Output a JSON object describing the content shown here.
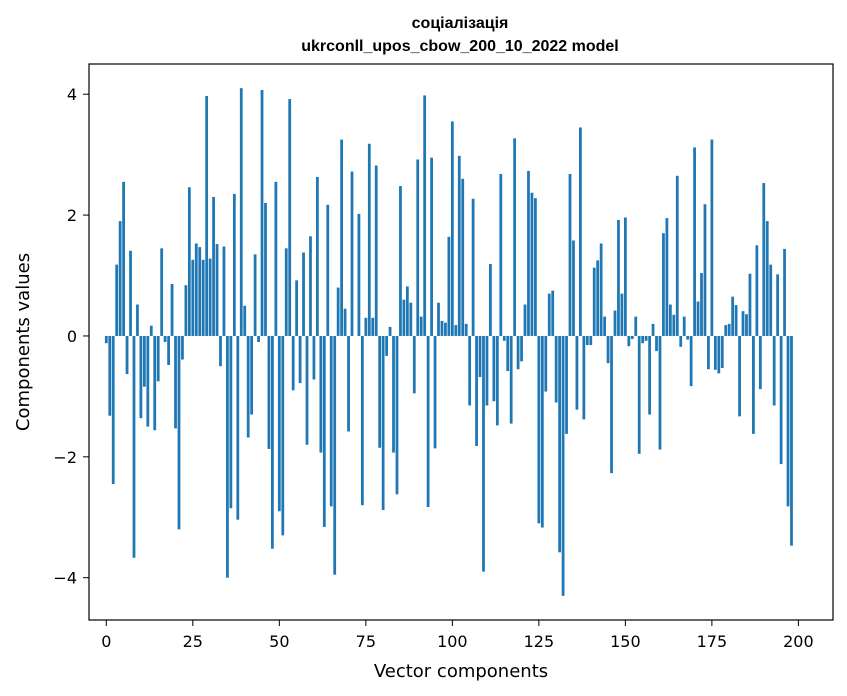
{
  "chart_data": {
    "type": "bar",
    "title": "соціалізація",
    "subtitle": "ukrconll_upos_cbow_200_10_2022 model",
    "xlabel": "Vector components",
    "ylabel": "Components values",
    "xlim": [
      -5,
      210
    ],
    "ylim": [
      -4.7,
      4.5
    ],
    "xticks": [
      0,
      25,
      50,
      75,
      100,
      125,
      150,
      175,
      200
    ],
    "yticks": [
      -4,
      -2,
      0,
      2,
      4
    ],
    "bar_color": "#1f77b4",
    "grid": false,
    "values": [
      -0.12,
      -1.32,
      -2.45,
      1.18,
      1.9,
      2.55,
      -0.63,
      1.41,
      -3.67,
      0.52,
      -1.36,
      -0.84,
      -1.5,
      0.17,
      -1.56,
      -0.75,
      1.45,
      -0.1,
      -0.48,
      0.86,
      -1.53,
      -3.2,
      -0.39,
      0.84,
      2.46,
      1.26,
      1.53,
      1.47,
      1.26,
      3.97,
      1.28,
      2.3,
      1.52,
      -0.5,
      1.48,
      -4.0,
      -2.85,
      2.35,
      -3.04,
      4.1,
      0.5,
      -1.68,
      -1.3,
      1.35,
      -0.1,
      4.07,
      2.2,
      -1.87,
      -3.52,
      2.55,
      -2.9,
      -3.3,
      1.45,
      3.92,
      -0.9,
      0.92,
      -0.78,
      1.38,
      -1.8,
      1.65,
      -0.72,
      2.63,
      -1.93,
      -3.16,
      2.17,
      -2.82,
      -3.95,
      0.8,
      3.25,
      0.45,
      -1.58,
      2.72,
      0.0,
      2.02,
      -2.8,
      0.3,
      3.18,
      0.3,
      2.82,
      -1.85,
      -2.88,
      -0.33,
      0.15,
      -1.93,
      -2.62,
      2.48,
      0.6,
      0.82,
      0.55,
      -0.95,
      2.92,
      0.32,
      3.98,
      -2.83,
      2.95,
      -1.86,
      0.55,
      0.25,
      0.22,
      1.64,
      3.55,
      0.18,
      2.98,
      2.6,
      0.2,
      -1.15,
      2.27,
      -1.82,
      -0.68,
      -3.9,
      -1.15,
      1.19,
      -1.08,
      -1.48,
      2.68,
      -0.08,
      -0.58,
      -1.45,
      3.27,
      -0.55,
      -0.42,
      0.52,
      2.73,
      2.37,
      2.28,
      -3.1,
      -3.17,
      -0.92,
      0.7,
      0.75,
      -1.1,
      -3.58,
      -4.3,
      -1.62,
      2.68,
      1.58,
      -1.22,
      3.45,
      -1.38,
      -0.15,
      -0.15,
      1.13,
      1.25,
      1.53,
      0.32,
      -0.45,
      -2.27,
      0.42,
      1.92,
      0.7,
      1.96,
      -0.17,
      -0.05,
      0.32,
      -1.95,
      -0.12,
      -0.08,
      -1.3,
      0.2,
      -0.25,
      -1.88,
      1.7,
      1.95,
      0.52,
      0.35,
      2.65,
      -0.18,
      0.32,
      -0.06,
      -0.83,
      3.12,
      0.57,
      1.04,
      2.18,
      -0.55,
      3.25,
      -0.56,
      -0.62,
      -0.53,
      0.18,
      0.2,
      0.65,
      0.51,
      -1.33,
      0.41,
      0.36,
      1.03,
      -1.62,
      1.5,
      -0.88,
      2.53,
      1.9,
      1.18,
      -1.15,
      1.02,
      -2.12,
      1.44,
      -2.82,
      -3.47
    ]
  }
}
